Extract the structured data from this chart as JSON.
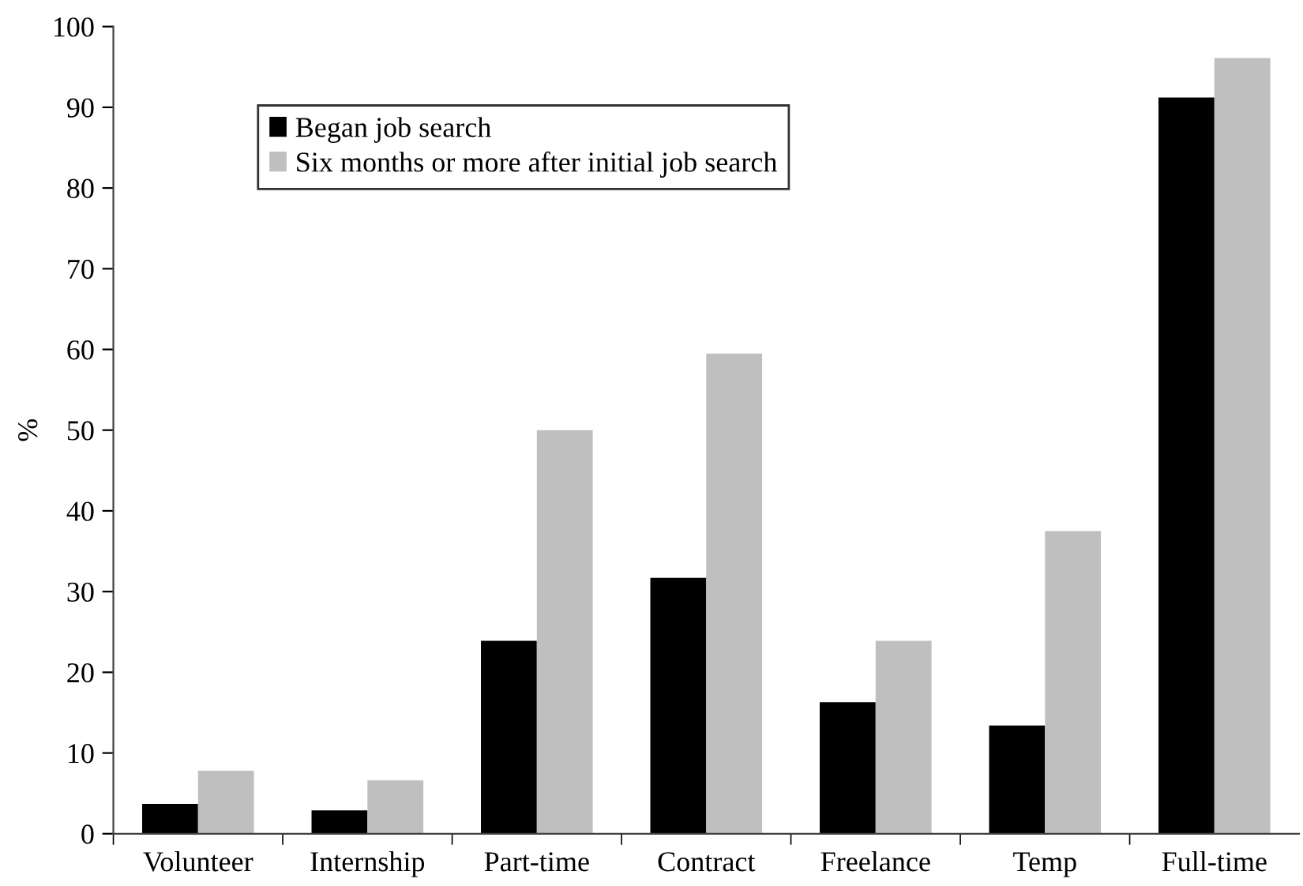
{
  "chart_data": {
    "type": "bar",
    "ylabel": "%",
    "categories": [
      "Volunteer",
      "Internship",
      "Part-time",
      "Contract",
      "Freelance",
      "Temp",
      "Full-time"
    ],
    "series": [
      {
        "name": "Began job search",
        "color": "#000000",
        "values": [
          3.7,
          2.9,
          23.9,
          31.7,
          16.3,
          13.4,
          91.2
        ]
      },
      {
        "name": "Six months or more after initial job search",
        "color": "#bfbfbf",
        "values": [
          7.8,
          6.6,
          50,
          59.5,
          23.9,
          37.5,
          96.1
        ]
      }
    ],
    "ylim": [
      0,
      100
    ],
    "yticks": [
      0,
      10,
      20,
      30,
      40,
      50,
      60,
      70,
      80,
      90,
      100
    ],
    "grid": false,
    "legend": "top left"
  }
}
